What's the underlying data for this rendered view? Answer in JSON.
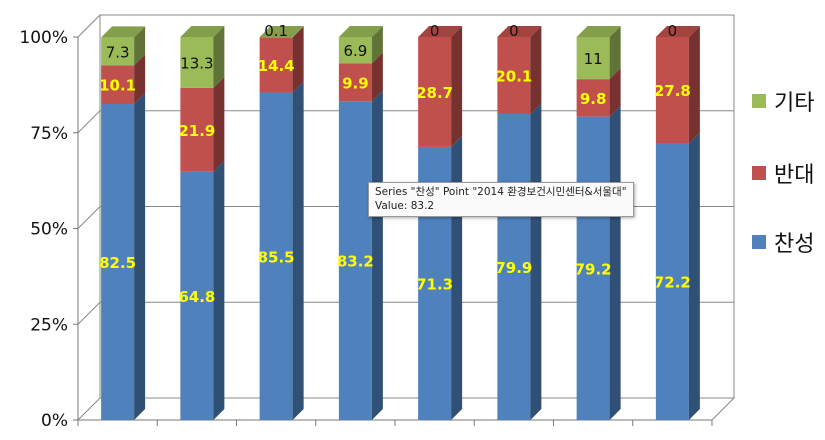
{
  "chart_data": {
    "type": "bar",
    "stacked": true,
    "percent_stacked": true,
    "three_d": true,
    "categories": [
      "",
      "",
      "",
      "",
      "",
      "",
      "",
      ""
    ],
    "series": [
      {
        "name": "찬성",
        "color": "#4f81bd",
        "values": [
          82.5,
          64.8,
          85.5,
          83.2,
          71.3,
          79.9,
          79.2,
          72.2
        ],
        "labels": [
          "82.5",
          "64.8",
          "85.5",
          "83.2",
          "71.3",
          "79.9",
          "79.2",
          "72.2"
        ]
      },
      {
        "name": "반대",
        "color": "#c0504d",
        "values": [
          10.1,
          21.9,
          14.4,
          9.9,
          28.7,
          20.1,
          9.8,
          27.8
        ],
        "labels": [
          "10.1",
          "21.9",
          "14.4",
          "9.9",
          "28.7",
          "20.1",
          "9.8",
          "27.8"
        ]
      },
      {
        "name": "기타",
        "color": "#9bbb59",
        "values": [
          7.3,
          13.3,
          0.1,
          6.9,
          0,
          0,
          11,
          0
        ],
        "labels": [
          "7.3",
          "13.3",
          "0.1",
          "6.9",
          "0",
          "0",
          "11",
          "0"
        ]
      }
    ],
    "yticks": [
      "0%",
      "25%",
      "50%",
      "75%",
      "100%"
    ],
    "ylim": [
      0,
      100
    ],
    "grid": true,
    "legend_position": "right"
  },
  "tooltip": {
    "line1": "Series \"찬성\" Point \"2014 환경보건시민센터&서울대\"",
    "line2": "Value: 83.2"
  }
}
